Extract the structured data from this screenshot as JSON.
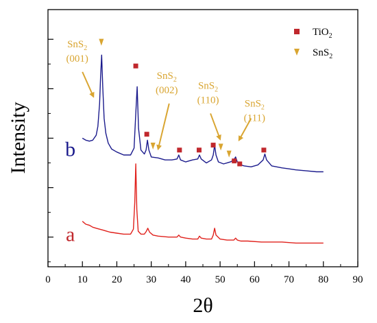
{
  "chart_data": {
    "type": "line",
    "title": "",
    "xlabel": "2θ",
    "ylabel": "Intensity",
    "xlim": [
      0,
      90
    ],
    "xticks": [
      0,
      10,
      20,
      30,
      40,
      50,
      60,
      70,
      80,
      90
    ],
    "y_tick_labels_shown": false,
    "grid": false,
    "legend_position": "top-right",
    "legend": [
      {
        "label_main": "TiO",
        "label_sub": "2",
        "marker": "square",
        "color": "#c0282d"
      },
      {
        "label_main": "SnS",
        "label_sub": "2",
        "marker": "triangle-down",
        "color": "#d9a531"
      }
    ],
    "series": [
      {
        "name": "b",
        "color": "#1a1a8c",
        "x": [
          10,
          11,
          12,
          13,
          14,
          14.5,
          15,
          15.3,
          15.6,
          15.9,
          16.3,
          16.8,
          17.5,
          18.5,
          20,
          22,
          24,
          25,
          25.5,
          25.9,
          26.3,
          27,
          28,
          28.5,
          28.9,
          29.3,
          30,
          32,
          34,
          36,
          37.5,
          38,
          38.5,
          40,
          42,
          43.5,
          44,
          44.5,
          46,
          47.5,
          48,
          48.4,
          48.8,
          49.5,
          51,
          52,
          53,
          54,
          54.5,
          55,
          56,
          57,
          59,
          61,
          62.5,
          63,
          63.5,
          65,
          68,
          70,
          72,
          75,
          78,
          80
        ],
        "y": [
          0.5,
          0.48,
          0.47,
          0.48,
          0.53,
          0.62,
          0.85,
          1.13,
          1.34,
          1.02,
          0.7,
          0.55,
          0.45,
          0.39,
          0.36,
          0.33,
          0.33,
          0.4,
          0.75,
          1.02,
          0.6,
          0.38,
          0.34,
          0.38,
          0.48,
          0.38,
          0.31,
          0.3,
          0.28,
          0.28,
          0.29,
          0.33,
          0.28,
          0.26,
          0.28,
          0.29,
          0.33,
          0.29,
          0.25,
          0.28,
          0.33,
          0.43,
          0.33,
          0.26,
          0.24,
          0.25,
          0.26,
          0.28,
          0.31,
          0.26,
          0.23,
          0.22,
          0.21,
          0.23,
          0.28,
          0.34,
          0.28,
          0.22,
          0.2,
          0.19,
          0.18,
          0.17,
          0.16,
          0.16
        ]
      },
      {
        "name": "a",
        "color": "#e0201b",
        "x": [
          10,
          11,
          12,
          13,
          14,
          15,
          16,
          17,
          18,
          20,
          22,
          24,
          24.8,
          25.2,
          25.5,
          25.8,
          26.2,
          27,
          28,
          28.6,
          29,
          29.5,
          30.5,
          32,
          35,
          37.5,
          38,
          38.5,
          40,
          42,
          43.5,
          44,
          44.5,
          46,
          47.5,
          48,
          48.4,
          48.8,
          50,
          52,
          54,
          54.5,
          55,
          56,
          58,
          62,
          63,
          64,
          68,
          72,
          76,
          80
        ],
        "y": [
          -0.34,
          -0.37,
          -0.38,
          -0.4,
          -0.41,
          -0.42,
          -0.43,
          -0.44,
          -0.45,
          -0.46,
          -0.47,
          -0.47,
          -0.42,
          -0.15,
          0.24,
          -0.22,
          -0.44,
          -0.47,
          -0.47,
          -0.44,
          -0.41,
          -0.45,
          -0.48,
          -0.49,
          -0.5,
          -0.5,
          -0.48,
          -0.5,
          -0.51,
          -0.52,
          -0.52,
          -0.49,
          -0.51,
          -0.52,
          -0.52,
          -0.48,
          -0.41,
          -0.48,
          -0.52,
          -0.53,
          -0.53,
          -0.51,
          -0.53,
          -0.54,
          -0.54,
          -0.55,
          -0.55,
          -0.55,
          -0.55,
          -0.56,
          -0.56,
          -0.56
        ]
      }
    ],
    "curve_labels": [
      {
        "text": "b",
        "color": "#1a1a8c",
        "x": 6.5,
        "y": 0.32
      },
      {
        "text": "a",
        "color": "#c0282d",
        "x": 6.5,
        "y": -0.54
      }
    ],
    "markers": [
      {
        "type": "triangle-down",
        "color": "#d9a531",
        "x": 15.5,
        "y": 1.47
      },
      {
        "type": "square",
        "color": "#c0282d",
        "x": 25.5,
        "y": 1.23
      },
      {
        "type": "square",
        "color": "#c0282d",
        "x": 28.7,
        "y": 0.54
      },
      {
        "type": "triangle-down",
        "color": "#d9a531",
        "x": 30.5,
        "y": 0.42
      },
      {
        "type": "square",
        "color": "#c0282d",
        "x": 38.2,
        "y": 0.38
      },
      {
        "type": "square",
        "color": "#c0282d",
        "x": 43.9,
        "y": 0.38
      },
      {
        "type": "square",
        "color": "#c0282d",
        "x": 48.0,
        "y": 0.43
      },
      {
        "type": "triangle-down",
        "color": "#d9a531",
        "x": 50.2,
        "y": 0.41
      },
      {
        "type": "triangle-down",
        "color": "#d9a531",
        "x": 52.6,
        "y": 0.34
      },
      {
        "type": "square",
        "color": "#c0282d",
        "x": 54.1,
        "y": 0.27
      },
      {
        "type": "square",
        "color": "#c0282d",
        "x": 55.7,
        "y": 0.24
      },
      {
        "type": "square",
        "color": "#c0282d",
        "x": 62.7,
        "y": 0.38
      }
    ],
    "annotations": [
      {
        "main": "SnS",
        "sub": "2",
        "hkl": "(001)",
        "color": "#d9a531",
        "x": 8.5,
        "y": 1.42,
        "arrow_from": [
          10.0,
          1.17
        ],
        "arrow_to": [
          13.2,
          0.92
        ]
      },
      {
        "main": "SnS",
        "sub": "2",
        "hkl": "(002)",
        "color": "#d9a531",
        "x": 34.5,
        "y": 1.1,
        "arrow_from": [
          35.2,
          0.85
        ],
        "arrow_to": [
          32.0,
          0.39
        ]
      },
      {
        "main": "SnS",
        "sub": "2",
        "hkl": "(110)",
        "color": "#d9a531",
        "x": 46.5,
        "y": 1.0,
        "arrow_from": [
          47.2,
          0.75
        ],
        "arrow_to": [
          50.0,
          0.49
        ]
      },
      {
        "main": "SnS",
        "sub": "2",
        "hkl": "(111)",
        "color": "#d9a531",
        "x": 60.0,
        "y": 0.82,
        "arrow_from": [
          59.0,
          0.7
        ],
        "arrow_to": [
          55.5,
          0.48
        ]
      }
    ]
  }
}
